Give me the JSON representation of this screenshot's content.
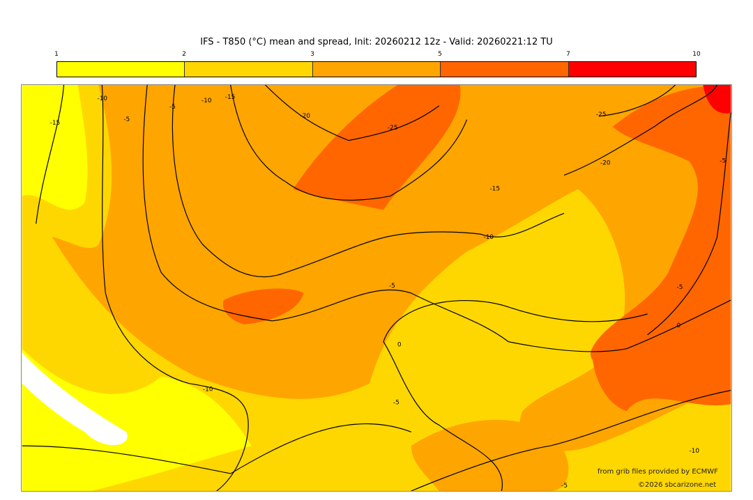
{
  "title": "IFS - T850 (°C) mean and spread, Init: 20260212 12z - Valid: 20260221:12 TU",
  "colorbar": {
    "ticks": [
      "1",
      "2",
      "3",
      "5",
      "7",
      "10"
    ],
    "colors": [
      "#ffff00",
      "#ffd700",
      "#ffa500",
      "#ff6600",
      "#ff0000"
    ]
  },
  "contour_labels": [
    "-15",
    "-10",
    "-5",
    "-5",
    "-10",
    "-15",
    "-20",
    "-25",
    "-25",
    "-20",
    "-5",
    "-15",
    "-10",
    "-5",
    "0",
    "-10",
    "-5",
    "-5",
    "0",
    "-10",
    "-5"
  ],
  "credits": {
    "source": "from grib files provided by ECMWF",
    "copyright": "©2026 sbcarizone.net"
  }
}
